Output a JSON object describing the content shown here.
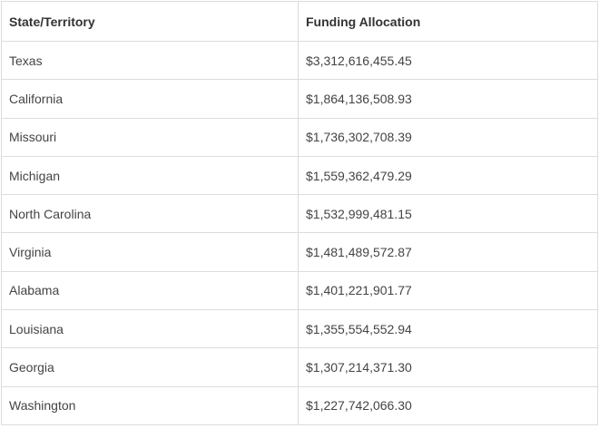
{
  "table": {
    "header": [
      "State/Territory",
      "Funding Allocation"
    ],
    "rows": [
      [
        "Texas",
        "$3,312,616,455.45"
      ],
      [
        "California",
        "$1,864,136,508.93"
      ],
      [
        "Missouri",
        "$1,736,302,708.39"
      ],
      [
        "Michigan",
        "$1,559,362,479.29"
      ],
      [
        "North Carolina",
        "$1,532,999,481.15"
      ],
      [
        "Virginia",
        "$1,481,489,572.87"
      ],
      [
        "Alabama",
        "$1,401,221,901.77"
      ],
      [
        "Louisiana",
        "$1,355,554,552.94"
      ],
      [
        "Georgia",
        "$1,307,214,371.30"
      ],
      [
        "Washington",
        "$1,227,742,066.30"
      ]
    ]
  }
}
